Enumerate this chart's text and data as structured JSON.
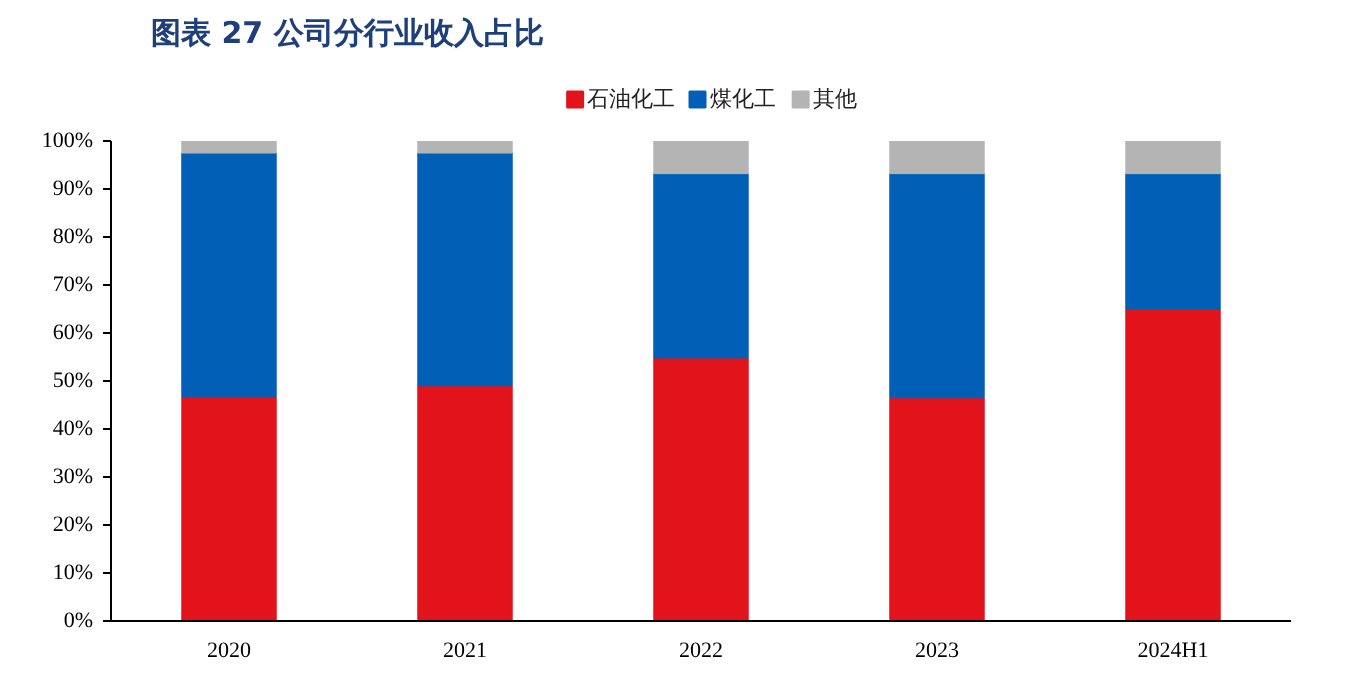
{
  "chart_data": {
    "type": "bar",
    "stacked": true,
    "title": "图表 27   公司分行业收入占比",
    "categories": [
      "2020",
      "2021",
      "2022",
      "2023",
      "2024H1"
    ],
    "series": [
      {
        "name": "石油化工",
        "color": "#e3131b",
        "values": [
          46.8,
          49.0,
          54.8,
          46.5,
          65.0
        ]
      },
      {
        "name": "煤化工",
        "color": "#0160b6",
        "values": [
          50.7,
          48.5,
          38.4,
          46.7,
          28.2
        ]
      },
      {
        "name": "其他",
        "color": "#b4b4b4",
        "values": [
          2.5,
          2.5,
          6.8,
          6.8,
          6.8
        ]
      }
    ],
    "ylim": [
      0,
      100
    ],
    "yticks": [
      {
        "value": 0,
        "label": "0%"
      },
      {
        "value": 10,
        "label": "10%"
      },
      {
        "value": 20,
        "label": "20%"
      },
      {
        "value": 30,
        "label": "30%"
      },
      {
        "value": 40,
        "label": "40%"
      },
      {
        "value": 50,
        "label": "50%"
      },
      {
        "value": 60,
        "label": "60%"
      },
      {
        "value": 70,
        "label": "70%"
      },
      {
        "value": 80,
        "label": "80%"
      },
      {
        "value": 90,
        "label": "90%"
      },
      {
        "value": 100,
        "label": "100%"
      }
    ],
    "grid": false,
    "legend": "top"
  }
}
